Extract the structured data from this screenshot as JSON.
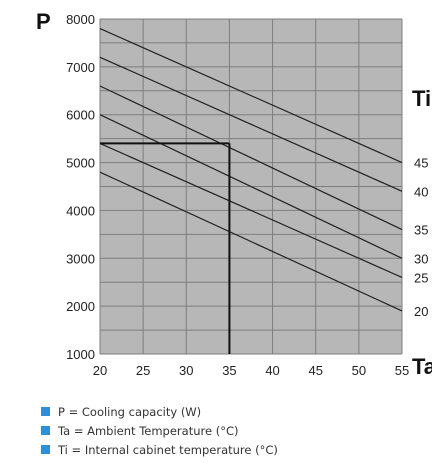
{
  "chart_data": {
    "type": "line",
    "ylabel": "P",
    "xlabel": "Ta",
    "curves_label": "Ti",
    "xlim": [
      20,
      55
    ],
    "ylim": [
      1000,
      8000
    ],
    "xticks": [
      "20",
      "25",
      "30",
      "35",
      "40",
      "45",
      "50",
      "55"
    ],
    "yticks": [
      "1000",
      "2000",
      "3000",
      "4000",
      "5000",
      "6000",
      "7000",
      "8000"
    ],
    "grid": true,
    "series": [
      {
        "name": "45",
        "x": [
          20,
          55
        ],
        "y": [
          7800,
          5000
        ]
      },
      {
        "name": "40",
        "x": [
          20,
          55
        ],
        "y": [
          7200,
          4400
        ]
      },
      {
        "name": "35",
        "x": [
          20,
          55
        ],
        "y": [
          6600,
          3600
        ]
      },
      {
        "name": "30",
        "x": [
          20,
          55
        ],
        "y": [
          6000,
          3000
        ]
      },
      {
        "name": "25",
        "x": [
          20,
          55
        ],
        "y": [
          5400,
          2600
        ]
      },
      {
        "name": "20",
        "x": [
          20,
          55
        ],
        "y": [
          4800,
          1900
        ]
      }
    ],
    "annotation": {
      "x": 35,
      "y": 5400
    }
  },
  "colors": {
    "plot_bg": "#b7b7b7",
    "grid": "#7e7e7e",
    "curve": "#222222",
    "legend_marker": "#2d8fd5"
  },
  "legend": [
    "P = Cooling capacity (W)",
    "Ta = Ambient Temperature (°C)",
    "Ti = Internal cabinet temperature (°C)"
  ]
}
